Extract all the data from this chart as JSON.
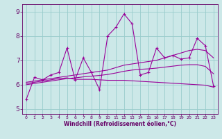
{
  "xlabel": "Windchill (Refroidissement éolien,°C)",
  "xlim": [
    -0.5,
    23.5
  ],
  "ylim": [
    4.8,
    9.3
  ],
  "xticks": [
    0,
    1,
    2,
    3,
    4,
    5,
    6,
    7,
    8,
    9,
    10,
    11,
    12,
    13,
    14,
    15,
    16,
    17,
    18,
    19,
    20,
    21,
    22,
    23
  ],
  "yticks": [
    5,
    6,
    7,
    8,
    9
  ],
  "bg_color": "#cce8e8",
  "line_color": "#990099",
  "grid_color": "#99cccc",
  "line1_x": [
    0,
    1,
    2,
    3,
    4,
    5,
    6,
    7,
    8,
    9,
    10,
    11,
    12,
    13,
    14,
    15,
    16,
    17,
    18,
    19,
    20,
    21,
    22,
    23
  ],
  "line1_y": [
    5.4,
    6.3,
    6.2,
    6.4,
    6.5,
    7.5,
    6.2,
    7.1,
    6.5,
    5.8,
    8.0,
    8.35,
    8.9,
    8.5,
    6.4,
    6.5,
    7.5,
    7.1,
    7.2,
    7.05,
    7.1,
    7.9,
    7.6,
    5.95
  ],
  "line2_x": [
    0,
    1,
    2,
    3,
    4,
    5,
    6,
    7,
    8,
    9,
    10,
    11,
    12,
    13,
    14,
    15,
    16,
    17,
    18,
    19,
    20,
    21,
    22,
    23
  ],
  "line2_y": [
    6.1,
    6.15,
    6.2,
    6.25,
    6.3,
    6.35,
    6.4,
    6.45,
    6.5,
    6.55,
    6.6,
    6.7,
    6.8,
    6.85,
    6.9,
    6.95,
    7.0,
    7.1,
    7.2,
    7.3,
    7.4,
    7.45,
    7.4,
    7.1
  ],
  "line3_x": [
    0,
    1,
    2,
    3,
    4,
    5,
    6,
    7,
    8,
    9,
    10,
    11,
    12,
    13,
    14,
    15,
    16,
    17,
    18,
    19,
    20,
    21,
    22,
    23
  ],
  "line3_y": [
    6.0,
    6.05,
    6.1,
    6.15,
    6.2,
    6.25,
    6.28,
    6.32,
    6.35,
    6.38,
    6.42,
    6.48,
    6.55,
    6.6,
    6.63,
    6.65,
    6.68,
    6.72,
    6.76,
    6.8,
    6.82,
    6.82,
    6.75,
    6.45
  ],
  "line4_x": [
    0,
    1,
    2,
    3,
    4,
    5,
    6,
    7,
    8,
    9,
    10,
    11,
    12,
    13,
    14,
    15,
    16,
    17,
    18,
    19,
    20,
    21,
    22,
    23
  ],
  "line4_y": [
    6.05,
    6.1,
    6.15,
    6.2,
    6.25,
    6.28,
    6.22,
    6.22,
    6.22,
    6.2,
    6.18,
    6.18,
    6.18,
    6.16,
    6.14,
    6.12,
    6.1,
    6.08,
    6.06,
    6.04,
    6.02,
    6.0,
    5.98,
    5.9
  ]
}
